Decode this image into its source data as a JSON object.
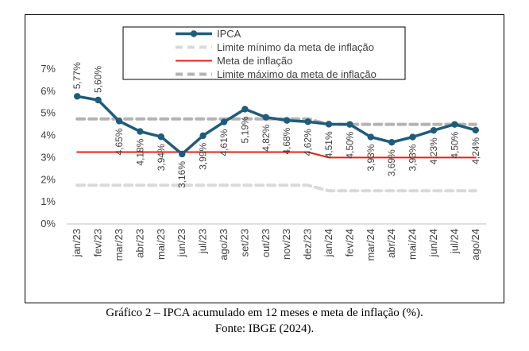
{
  "caption": {
    "title": "Gráfico 2 – IPCA acumulado em 12 meses e meta de inflação (%).",
    "source": "Fonte: IBGE (2024)."
  },
  "chart_data": {
    "type": "line",
    "title": "",
    "xlabel": "",
    "ylabel": "",
    "ylim": [
      0,
      7
    ],
    "yticks": [
      "0%",
      "1%",
      "2%",
      "3%",
      "4%",
      "5%",
      "6%",
      "7%"
    ],
    "grid": false,
    "legend_position": "top-center",
    "categories": [
      "jan/23",
      "fev/23",
      "mar/23",
      "abr/23",
      "mai/23",
      "jun/23",
      "jul/23",
      "ago/23",
      "set/23",
      "out/23",
      "nov/23",
      "dez/23",
      "jan/24",
      "fev/24",
      "mar/24",
      "abr/24",
      "mai/24",
      "jun/24",
      "jul/24",
      "ago/24"
    ],
    "series": [
      {
        "name": "IPCA",
        "color": "#1f5c7a",
        "style": "solid-markers",
        "values": [
          5.77,
          5.6,
          4.65,
          4.18,
          3.94,
          3.16,
          3.99,
          4.61,
          5.19,
          4.82,
          4.68,
          4.62,
          4.51,
          4.5,
          3.93,
          3.69,
          3.93,
          4.23,
          4.5,
          4.24
        ],
        "labels": [
          "5,77%",
          "5,60%",
          "4,65%",
          "4,18%",
          "3,94%",
          "3,16%",
          "3,99%",
          "4,61%",
          "5,19%",
          "4,82%",
          "4,68%",
          "4,62%",
          "4,51%",
          "4,50%",
          "3,93%",
          "3,69%",
          "3,93%",
          "4,23%",
          "4,50%",
          "4,24%"
        ]
      },
      {
        "name": "Limite mínimo da meta de inflação",
        "color": "#d9d9d9",
        "style": "dashed",
        "values": [
          1.75,
          1.75,
          1.75,
          1.75,
          1.75,
          1.75,
          1.75,
          1.75,
          1.75,
          1.75,
          1.75,
          1.75,
          1.5,
          1.5,
          1.5,
          1.5,
          1.5,
          1.5,
          1.5,
          1.5
        ]
      },
      {
        "name": "Meta de inflação",
        "color": "#e8201a",
        "style": "solid",
        "values": [
          3.25,
          3.25,
          3.25,
          3.25,
          3.25,
          3.25,
          3.25,
          3.25,
          3.25,
          3.25,
          3.25,
          3.25,
          3.0,
          3.0,
          3.0,
          3.0,
          3.0,
          3.0,
          3.0,
          3.0
        ]
      },
      {
        "name": "Limite máximo da meta de inflação",
        "color": "#b3b3b3",
        "style": "dashed",
        "values": [
          4.75,
          4.75,
          4.75,
          4.75,
          4.75,
          4.75,
          4.75,
          4.75,
          4.75,
          4.75,
          4.75,
          4.75,
          4.5,
          4.5,
          4.5,
          4.5,
          4.5,
          4.5,
          4.5,
          4.5
        ]
      }
    ]
  }
}
